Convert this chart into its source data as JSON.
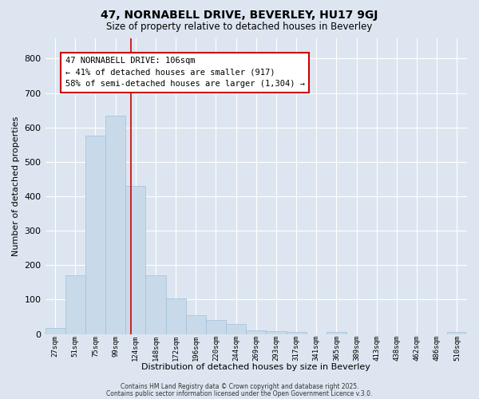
{
  "title": "47, NORNABELL DRIVE, BEVERLEY, HU17 9GJ",
  "subtitle": "Size of property relative to detached houses in Beverley",
  "xlabel": "Distribution of detached houses by size in Beverley",
  "ylabel": "Number of detached properties",
  "bar_color": "#c8daea",
  "bar_edge_color": "#a0bfd8",
  "background_color": "#dde6f0",
  "grid_color": "#ffffff",
  "categories": [
    "27sqm",
    "51sqm",
    "75sqm",
    "99sqm",
    "124sqm",
    "148sqm",
    "172sqm",
    "196sqm",
    "220sqm",
    "244sqm",
    "269sqm",
    "293sqm",
    "317sqm",
    "341sqm",
    "365sqm",
    "389sqm",
    "413sqm",
    "438sqm",
    "462sqm",
    "486sqm",
    "510sqm"
  ],
  "values": [
    18,
    170,
    575,
    635,
    430,
    170,
    103,
    55,
    40,
    30,
    10,
    8,
    5,
    0,
    5,
    0,
    0,
    0,
    0,
    0,
    7
  ],
  "ylim": [
    0,
    860
  ],
  "yticks": [
    0,
    100,
    200,
    300,
    400,
    500,
    600,
    700,
    800
  ],
  "red_line_x": 3.79,
  "annotation_line1": "47 NORNABELL DRIVE: 106sqm",
  "annotation_line2": "← 41% of detached houses are smaller (917)",
  "annotation_line3": "58% of semi-detached houses are larger (1,304) →",
  "annotation_box_color": "#ffffff",
  "annotation_edge_color": "#cc0000",
  "footer_line1": "Contains HM Land Registry data © Crown copyright and database right 2025.",
  "footer_line2": "Contains public sector information licensed under the Open Government Licence v.3.0."
}
